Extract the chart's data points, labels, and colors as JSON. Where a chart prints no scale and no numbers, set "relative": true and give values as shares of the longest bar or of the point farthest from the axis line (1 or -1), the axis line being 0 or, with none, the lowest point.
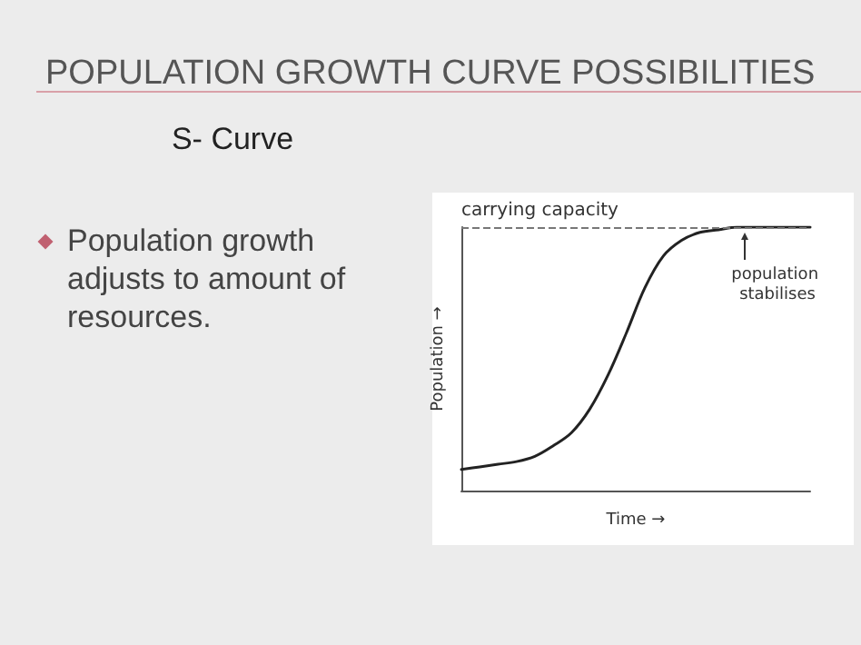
{
  "chart_data": {
    "type": "line",
    "title": "POPULATION GROWTH CURVE POSSIBILITIES",
    "subtitle": "S- Curve",
    "xlabel": "Time →",
    "ylabel": "Population →",
    "annotations": [
      "Population growth adjusts to amount of resources.",
      "population stabilises"
    ],
    "categories": [
      null,
      null,
      null,
      null,
      null,
      null,
      null,
      null,
      null,
      null,
      null,
      null,
      null,
      null,
      null,
      null,
      null,
      null,
      null,
      null
    ],
    "series": [
      {
        "color": "#222222",
        "values": [
          0.08,
          0.09,
          0.1,
          0.11,
          0.13,
          0.17,
          0.22,
          0.31,
          0.44,
          0.6,
          0.77,
          0.89,
          0.95,
          0.98,
          0.99,
          1,
          1,
          1,
          1,
          1
        ]
      }
    ],
    "relative": true,
    "ref_lines": [
      {
        "axis": "y",
        "value": 1,
        "label": "carrying capacity",
        "color": "#777777",
        "line_style": "dashed"
      }
    ],
    "marker": "none",
    "line_style": "solid",
    "grid": false
  }
}
